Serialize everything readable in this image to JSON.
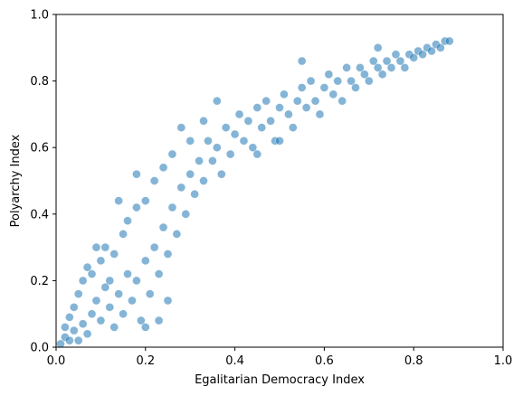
{
  "chart_data": {
    "type": "scatter",
    "title": "",
    "xlabel": "Egalitarian Democracy Index",
    "ylabel": "Polyarchy Index",
    "xlim": [
      0.0,
      1.0
    ],
    "ylim": [
      0.0,
      1.0
    ],
    "xticks": [
      "0.0",
      "0.2",
      "0.4",
      "0.6",
      "0.8",
      "1.0"
    ],
    "yticks": [
      "0.0",
      "0.2",
      "0.4",
      "0.6",
      "0.8",
      "1.0"
    ],
    "grid": false,
    "legend": "none",
    "marker_color": "#1f77b4",
    "marker_opacity": 0.12,
    "series": [
      {
        "points": [
          [
            0.01,
            0.01
          ],
          [
            0.02,
            0.03
          ],
          [
            0.03,
            0.02
          ],
          [
            0.02,
            0.06
          ],
          [
            0.04,
            0.05
          ],
          [
            0.05,
            0.02
          ],
          [
            0.03,
            0.09
          ],
          [
            0.06,
            0.07
          ],
          [
            0.04,
            0.12
          ],
          [
            0.07,
            0.04
          ],
          [
            0.08,
            0.1
          ],
          [
            0.05,
            0.16
          ],
          [
            0.06,
            0.2
          ],
          [
            0.09,
            0.14
          ],
          [
            0.07,
            0.24
          ],
          [
            0.1,
            0.08
          ],
          [
            0.11,
            0.18
          ],
          [
            0.08,
            0.22
          ],
          [
            0.12,
            0.12
          ],
          [
            0.1,
            0.26
          ],
          [
            0.13,
            0.06
          ],
          [
            0.12,
            0.2
          ],
          [
            0.14,
            0.16
          ],
          [
            0.11,
            0.3
          ],
          [
            0.15,
            0.1
          ],
          [
            0.16,
            0.22
          ],
          [
            0.13,
            0.28
          ],
          [
            0.17,
            0.14
          ],
          [
            0.15,
            0.34
          ],
          [
            0.18,
            0.2
          ],
          [
            0.19,
            0.08
          ],
          [
            0.16,
            0.38
          ],
          [
            0.2,
            0.26
          ],
          [
            0.21,
            0.16
          ],
          [
            0.18,
            0.42
          ],
          [
            0.22,
            0.3
          ],
          [
            0.2,
            0.44
          ],
          [
            0.23,
            0.22
          ],
          [
            0.24,
            0.36
          ],
          [
            0.22,
            0.5
          ],
          [
            0.25,
            0.28
          ],
          [
            0.26,
            0.42
          ],
          [
            0.24,
            0.54
          ],
          [
            0.27,
            0.34
          ],
          [
            0.28,
            0.48
          ],
          [
            0.26,
            0.58
          ],
          [
            0.29,
            0.4
          ],
          [
            0.3,
            0.52
          ],
          [
            0.31,
            0.46
          ],
          [
            0.3,
            0.62
          ],
          [
            0.32,
            0.56
          ],
          [
            0.33,
            0.5
          ],
          [
            0.34,
            0.62
          ],
          [
            0.35,
            0.56
          ],
          [
            0.33,
            0.68
          ],
          [
            0.36,
            0.6
          ],
          [
            0.37,
            0.52
          ],
          [
            0.38,
            0.66
          ],
          [
            0.39,
            0.58
          ],
          [
            0.4,
            0.64
          ],
          [
            0.41,
            0.7
          ],
          [
            0.42,
            0.62
          ],
          [
            0.43,
            0.68
          ],
          [
            0.44,
            0.6
          ],
          [
            0.45,
            0.72
          ],
          [
            0.46,
            0.66
          ],
          [
            0.47,
            0.74
          ],
          [
            0.48,
            0.68
          ],
          [
            0.49,
            0.62
          ],
          [
            0.5,
            0.72
          ],
          [
            0.51,
            0.76
          ],
          [
            0.52,
            0.7
          ],
          [
            0.53,
            0.66
          ],
          [
            0.54,
            0.74
          ],
          [
            0.55,
            0.78
          ],
          [
            0.56,
            0.72
          ],
          [
            0.57,
            0.8
          ],
          [
            0.58,
            0.74
          ],
          [
            0.59,
            0.7
          ],
          [
            0.6,
            0.78
          ],
          [
            0.61,
            0.82
          ],
          [
            0.62,
            0.76
          ],
          [
            0.63,
            0.8
          ],
          [
            0.64,
            0.74
          ],
          [
            0.65,
            0.84
          ],
          [
            0.66,
            0.8
          ],
          [
            0.67,
            0.78
          ],
          [
            0.68,
            0.84
          ],
          [
            0.69,
            0.82
          ],
          [
            0.7,
            0.8
          ],
          [
            0.71,
            0.86
          ],
          [
            0.72,
            0.84
          ],
          [
            0.73,
            0.82
          ],
          [
            0.74,
            0.86
          ],
          [
            0.75,
            0.84
          ],
          [
            0.76,
            0.88
          ],
          [
            0.77,
            0.86
          ],
          [
            0.78,
            0.84
          ],
          [
            0.79,
            0.88
          ],
          [
            0.8,
            0.87
          ],
          [
            0.81,
            0.89
          ],
          [
            0.82,
            0.88
          ],
          [
            0.83,
            0.9
          ],
          [
            0.84,
            0.89
          ],
          [
            0.85,
            0.91
          ],
          [
            0.86,
            0.9
          ],
          [
            0.87,
            0.92
          ],
          [
            0.88,
            0.92
          ],
          [
            0.14,
            0.44
          ],
          [
            0.18,
            0.52
          ],
          [
            0.28,
            0.66
          ],
          [
            0.36,
            0.74
          ],
          [
            0.55,
            0.86
          ],
          [
            0.72,
            0.9
          ],
          [
            0.09,
            0.3
          ],
          [
            0.2,
            0.06
          ],
          [
            0.23,
            0.08
          ],
          [
            0.25,
            0.14
          ],
          [
            0.45,
            0.58
          ],
          [
            0.5,
            0.62
          ]
        ]
      }
    ]
  }
}
